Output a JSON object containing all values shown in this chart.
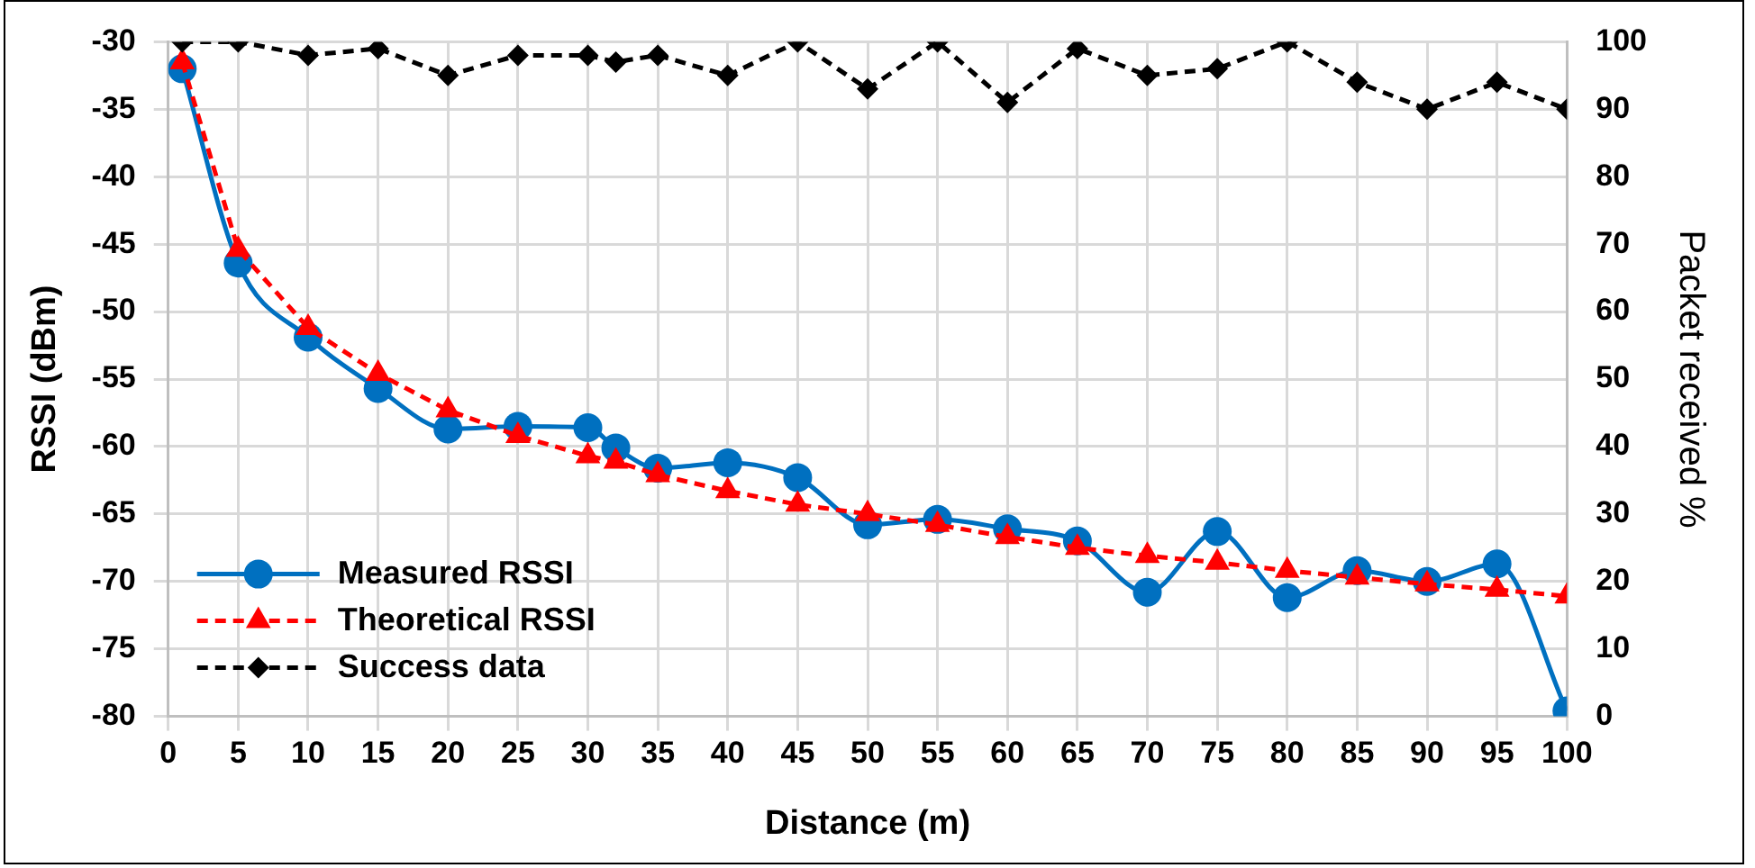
{
  "chart_data": {
    "type": "line",
    "xlabel": "Distance (m)",
    "ylabel": "RSSI (dBm)",
    "y2label": "Packet received %",
    "x": [
      1,
      5,
      10,
      15,
      20,
      25,
      30,
      32,
      35,
      40,
      45,
      50,
      55,
      60,
      65,
      70,
      75,
      80,
      85,
      90,
      95,
      100
    ],
    "series": [
      {
        "name": "Measured RSSI",
        "color": "#0070c0",
        "marker": "circle",
        "line_style": "solid",
        "values": [
          -32.0,
          -46.4,
          -51.9,
          -55.7,
          -58.7,
          -58.5,
          -58.6,
          -60.1,
          -61.6,
          -61.2,
          -62.3,
          -65.8,
          -65.4,
          -66.1,
          -67.0,
          -70.8,
          -66.3,
          -71.2,
          -69.2,
          -70.0,
          -68.7,
          -79.6
        ]
      },
      {
        "name": "Theoretical RSSI",
        "color": "#ff0000",
        "marker": "triangle",
        "line_style": "dashed",
        "values": [
          -31.5,
          -45.4,
          -51.2,
          -54.6,
          -57.3,
          -59.2,
          -60.7,
          -61.1,
          -62.1,
          -63.3,
          -64.3,
          -65.0,
          -65.8,
          -66.7,
          -67.5,
          -68.1,
          -68.6,
          -69.2,
          -69.7,
          -70.2,
          -70.6,
          -71.1
        ]
      },
      {
        "name": "Success data",
        "color": "#000000",
        "marker": "diamond",
        "line_style": "dashed",
        "axis": "y2",
        "values": [
          100,
          100,
          98,
          99,
          95,
          98,
          98,
          97,
          98,
          95,
          100,
          93,
          100,
          91,
          99,
          95,
          96,
          100,
          94,
          90,
          94,
          90
        ]
      }
    ],
    "xlim": [
      0,
      100
    ],
    "xticks": [
      0,
      5,
      10,
      15,
      20,
      25,
      30,
      35,
      40,
      45,
      50,
      55,
      60,
      65,
      70,
      75,
      80,
      85,
      90,
      95,
      100
    ],
    "ylim": [
      -80,
      -30
    ],
    "yticks": [
      -80,
      -75,
      -70,
      -65,
      -60,
      -55,
      -50,
      -45,
      -40,
      -35,
      -30
    ],
    "y2lim": [
      0,
      100
    ],
    "y2ticks": [
      0,
      10,
      20,
      30,
      40,
      50,
      60,
      70,
      80,
      90,
      100
    ],
    "grid": true,
    "legend": "bottom left"
  }
}
